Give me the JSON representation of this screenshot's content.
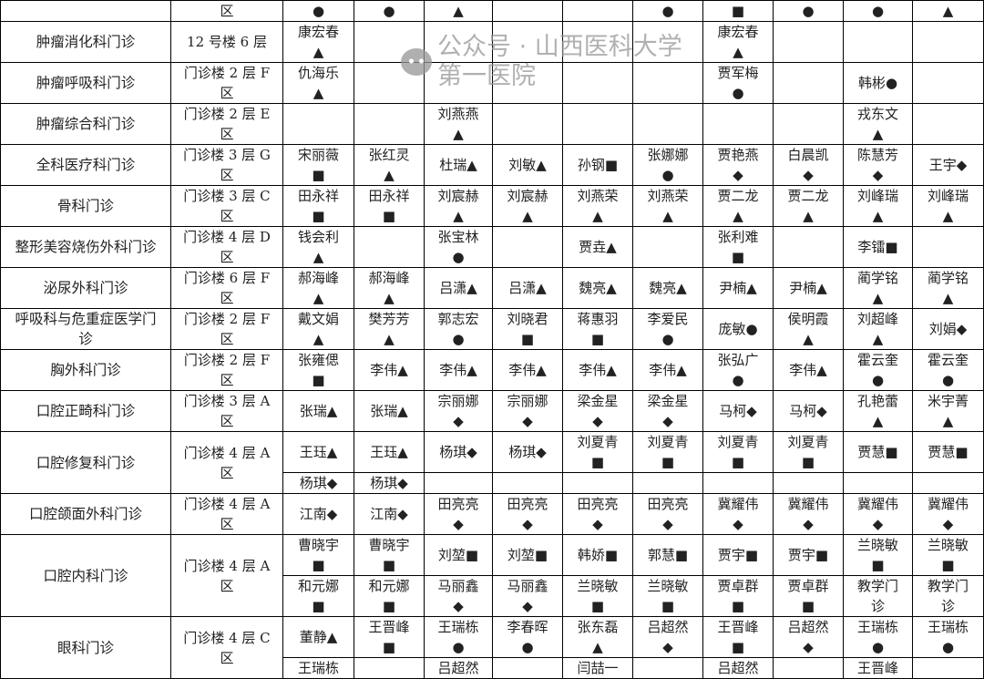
{
  "table": {
    "rows": [
      {
        "dept": "",
        "loc": "区",
        "cells": [
          "●",
          "●",
          "▲",
          "",
          "",
          "●",
          "■",
          "●",
          "●",
          "▲"
        ],
        "partial": true
      },
      {
        "dept": "肿瘤消化科门诊",
        "loc": "12 号楼 6 层",
        "cells": [
          "康宏春\n▲",
          "",
          "",
          "",
          "",
          "",
          "康宏春\n▲",
          "",
          "",
          ""
        ]
      },
      {
        "dept": "肿瘤呼吸科门诊",
        "loc": "门诊楼 2 层 F\n区",
        "cells": [
          "仇海乐\n▲",
          "",
          "",
          "",
          "",
          "",
          "贾军梅\n●",
          "",
          "韩彬●",
          ""
        ]
      },
      {
        "dept": "肿瘤综合科门诊",
        "loc": "门诊楼 2 层 E\n区",
        "cells": [
          "",
          "",
          "刘燕燕\n▲",
          "",
          "",
          "",
          "",
          "",
          "戎东文\n▲",
          ""
        ]
      },
      {
        "dept": "全科医疗科门诊",
        "loc": "门诊楼 3 层 G\n区",
        "cells": [
          "宋丽薇\n■",
          "张红灵\n▲",
          "杜瑞▲",
          "刘敏▲",
          "孙钢■",
          "张娜娜\n●",
          "贾艳燕\n◆",
          "白晨凯\n◆",
          "陈慧芳\n◆",
          "王宇◆"
        ]
      },
      {
        "dept": "骨科门诊",
        "loc": "门诊楼 3 层 C\n区",
        "cells": [
          "田永祥\n■",
          "田永祥\n■",
          "刘宸赫\n▲",
          "刘宸赫\n▲",
          "刘燕荣\n▲",
          "刘燕荣\n▲",
          "贾二龙\n▲",
          "贾二龙\n▲",
          "刘峰瑞\n▲",
          "刘峰瑞\n▲"
        ]
      },
      {
        "dept": "整形美容烧伤外科门诊",
        "loc": "门诊楼 4 层 D\n区",
        "cells": [
          "钱会利\n▲",
          "",
          "张宝林\n●",
          "",
          "贾垚▲",
          "",
          "张利难\n■",
          "",
          "李镭■",
          ""
        ]
      },
      {
        "dept": "泌尿外科门诊",
        "loc": "门诊楼 6 层 F\n区",
        "cells": [
          "郝海峰\n▲",
          "郝海峰\n▲",
          "吕潇▲",
          "吕潇▲",
          "魏亮▲",
          "魏亮▲",
          "尹楠▲",
          "尹楠▲",
          "蔺学铭\n▲",
          "蔺学铭\n▲"
        ]
      },
      {
        "dept": "呼吸科与危重症医学门\n诊",
        "loc": "门诊楼 2 层 F\n区",
        "cells": [
          "戴文娟\n▲",
          "樊芳芳\n▲",
          "郭志宏\n●",
          "刘晓君\n■",
          "蒋惠羽\n■",
          "李爱民\n●",
          "庞敏●",
          "侯明霞\n▲",
          "刘超峰\n▲",
          "刘娟◆"
        ]
      },
      {
        "dept": "胸外科门诊",
        "loc": "门诊楼 2 层 F\n区",
        "cells": [
          "张雍偲\n■",
          "李伟▲",
          "李伟▲",
          "李伟▲",
          "李伟▲",
          "李伟▲",
          "张弘广\n●",
          "李伟▲",
          "霍云奎\n●",
          "霍云奎\n●"
        ]
      },
      {
        "dept": "口腔正畸科门诊",
        "loc": "门诊楼 3 层 A\n区",
        "cells": [
          "张瑞▲",
          "张瑞▲",
          "宗丽娜\n◆",
          "宗丽娜\n◆",
          "梁金星\n◆",
          "梁金星\n◆",
          "马柯◆",
          "马柯◆",
          "孔艳蕾\n▲",
          "米宇菁\n▲"
        ]
      },
      {
        "dept": "口腔修复科门诊",
        "loc": "门诊楼 4 层 A\n区",
        "cells": [
          "王珏▲",
          "王珏▲",
          "杨琪◆",
          "杨琪◆",
          "刘夏青\n■",
          "刘夏青\n■",
          "刘夏青\n■",
          "刘夏青\n■",
          "贾慧■",
          "贾慧■"
        ],
        "sub": [
          "杨琪◆",
          "杨琪◆",
          "",
          "",
          "",
          "",
          "",
          "",
          "",
          ""
        ]
      },
      {
        "dept": "口腔颌面外科门诊",
        "loc": "门诊楼 4 层 A\n区",
        "cells": [
          "江南◆",
          "江南◆",
          "田亮亮\n◆",
          "田亮亮\n◆",
          "田亮亮\n◆",
          "田亮亮\n◆",
          "冀耀伟\n◆",
          "冀耀伟\n◆",
          "冀耀伟\n◆",
          "冀耀伟\n◆"
        ]
      },
      {
        "dept": "口腔内科门诊",
        "loc": "门诊楼 4 层 A\n区",
        "cells": [
          "曹晓宇\n■",
          "曹晓宇\n■",
          "刘堃■",
          "刘堃■",
          "韩娇■",
          "郭慧■",
          "贾宇■",
          "贾宇■",
          "兰晓敏\n■",
          "兰晓敏\n■"
        ],
        "sub": [
          "和元娜\n■",
          "和元娜\n■",
          "马丽鑫\n◆",
          "马丽鑫\n◆",
          "兰晓敏\n■",
          "兰晓敏\n■",
          "贾卓群\n■",
          "贾卓群\n■",
          "教学门\n诊",
          "教学门\n诊"
        ]
      },
      {
        "dept": "眼科门诊",
        "loc": "门诊楼 4 层 C\n区",
        "cells": [
          "董静▲",
          "王晋峰\n■",
          "王瑞栋\n●",
          "李春晖\n●",
          "张东磊\n▲",
          "吕超然\n◆",
          "王晋峰\n■",
          "吕超然\n◆",
          "王瑞栋\n●",
          "王瑞栋\n●"
        ],
        "sub": [
          "王瑞栋",
          "",
          "吕超然",
          "",
          "闫喆一",
          "",
          "吕超然",
          "",
          "王晋峰",
          ""
        ]
      }
    ]
  },
  "watermark": {
    "text": "公众号 · 山西医科大学第一医院",
    "icon": "wechat-icon"
  }
}
